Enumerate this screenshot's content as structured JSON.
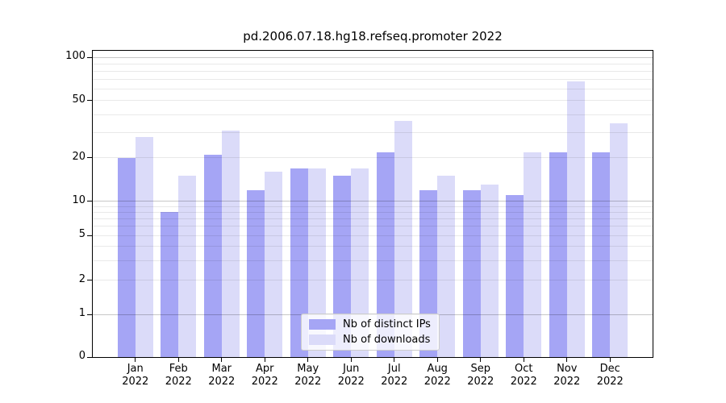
{
  "title": "pd.2006.07.18.hg18.refseq.promoter 2022",
  "chart_data": {
    "type": "bar",
    "title": "pd.2006.07.18.hg18.refseq.promoter 2022",
    "year": "2022",
    "categories": [
      "Jan",
      "Feb",
      "Mar",
      "Apr",
      "May",
      "Jun",
      "Jul",
      "Aug",
      "Sep",
      "Oct",
      "Nov",
      "Dec"
    ],
    "series": [
      {
        "name": "Nb of distinct IPs",
        "color": "#a5a5f5",
        "values": [
          20,
          8,
          21,
          12,
          17,
          15,
          22,
          12,
          12,
          11,
          22,
          22
        ]
      },
      {
        "name": "Nb of downloads",
        "color": "#dbdbf9",
        "values": [
          28,
          15,
          31,
          16,
          17,
          17,
          36,
          15,
          13,
          22,
          68,
          35
        ]
      }
    ],
    "y_axis": {
      "scale": "symlog",
      "tick_labels": [
        100,
        50,
        20,
        10,
        5,
        2,
        1,
        0
      ],
      "minor_gridlines": [
        2,
        3,
        4,
        5,
        6,
        7,
        8,
        9,
        20,
        30,
        40,
        50,
        60,
        70,
        80,
        90
      ],
      "major_gridlines": [
        1,
        10,
        100
      ],
      "ylim": [
        0,
        110
      ]
    },
    "xlabel": "",
    "ylabel": "",
    "grid": "on",
    "legend_position": "lower center",
    "colors": {
      "grid_major": "#c7c7c7",
      "grid_minor": "#e9e9e9",
      "axis": "#000000",
      "background": "#ffffff"
    }
  }
}
